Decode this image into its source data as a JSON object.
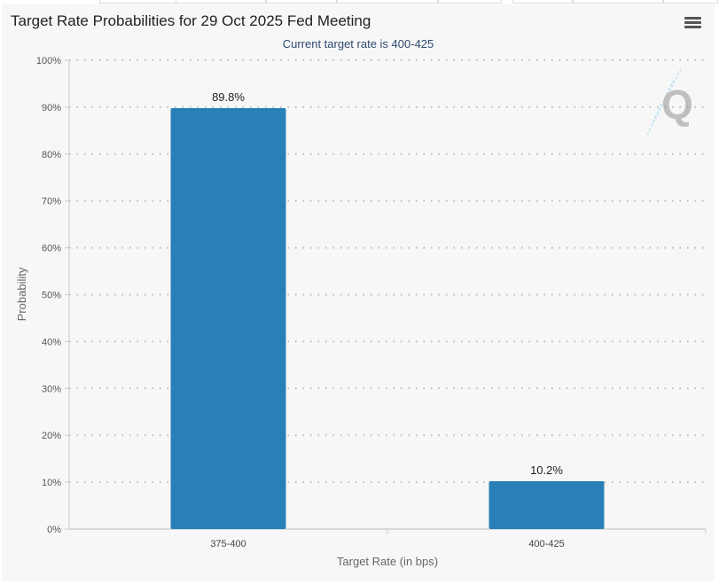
{
  "chart_data": {
    "type": "bar",
    "title": "Target Rate Probabilities for 29 Oct 2025 Fed Meeting",
    "subtitle": "Current target rate is 400-425",
    "categories": [
      "375-400",
      "400-425"
    ],
    "values": [
      89.8,
      10.2
    ],
    "data_labels": [
      "89.8%",
      "10.2%"
    ],
    "xlabel": "Target Rate (in bps)",
    "ylabel": "Probability",
    "ylim": [
      0,
      100
    ],
    "yticks": [
      "0%",
      "10%",
      "20%",
      "30%",
      "40%",
      "50%",
      "60%",
      "70%",
      "80%",
      "90%",
      "100%"
    ],
    "grid": true,
    "bar_color": "#2980b9"
  },
  "watermark": "Q"
}
